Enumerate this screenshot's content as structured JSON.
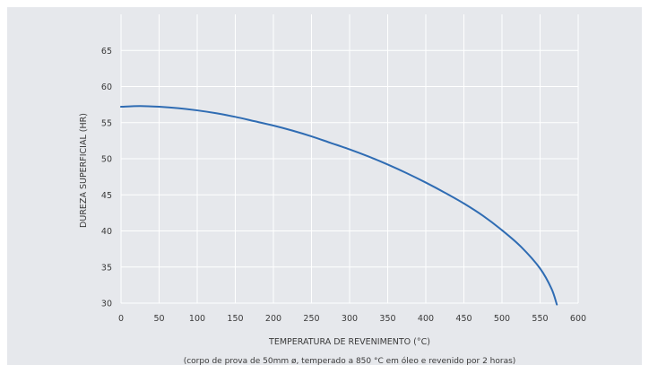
{
  "chart_data": {
    "type": "line",
    "xlabel": "TEMPERATURA DE REVENIMENTO (°C)",
    "ylabel": "DUREZA SUPERFICIAL (HR)",
    "note": "(corpo de prova de 50mm ø, temperado a 850 °C em óleo e revenido por 2 horas)",
    "xlim": [
      0,
      600
    ],
    "ylim": [
      30,
      70
    ],
    "xticks": [
      0,
      50,
      100,
      150,
      200,
      250,
      300,
      350,
      400,
      450,
      500,
      550,
      600
    ],
    "yticks": [
      30,
      35,
      40,
      45,
      50,
      55,
      60,
      65
    ],
    "grid": true,
    "series": [
      {
        "color": "#2f6cb3",
        "x": [
          0,
          25,
          50,
          75,
          100,
          125,
          150,
          175,
          200,
          225,
          250,
          275,
          300,
          325,
          350,
          375,
          400,
          425,
          450,
          475,
          500,
          525,
          550,
          565,
          572
        ],
        "y": [
          57.2,
          57.3,
          57.2,
          57.0,
          56.7,
          56.3,
          55.8,
          55.2,
          54.6,
          53.9,
          53.1,
          52.2,
          51.3,
          50.3,
          49.2,
          48.0,
          46.7,
          45.3,
          43.8,
          42.1,
          40.1,
          37.8,
          34.8,
          32.0,
          29.8
        ]
      }
    ]
  }
}
